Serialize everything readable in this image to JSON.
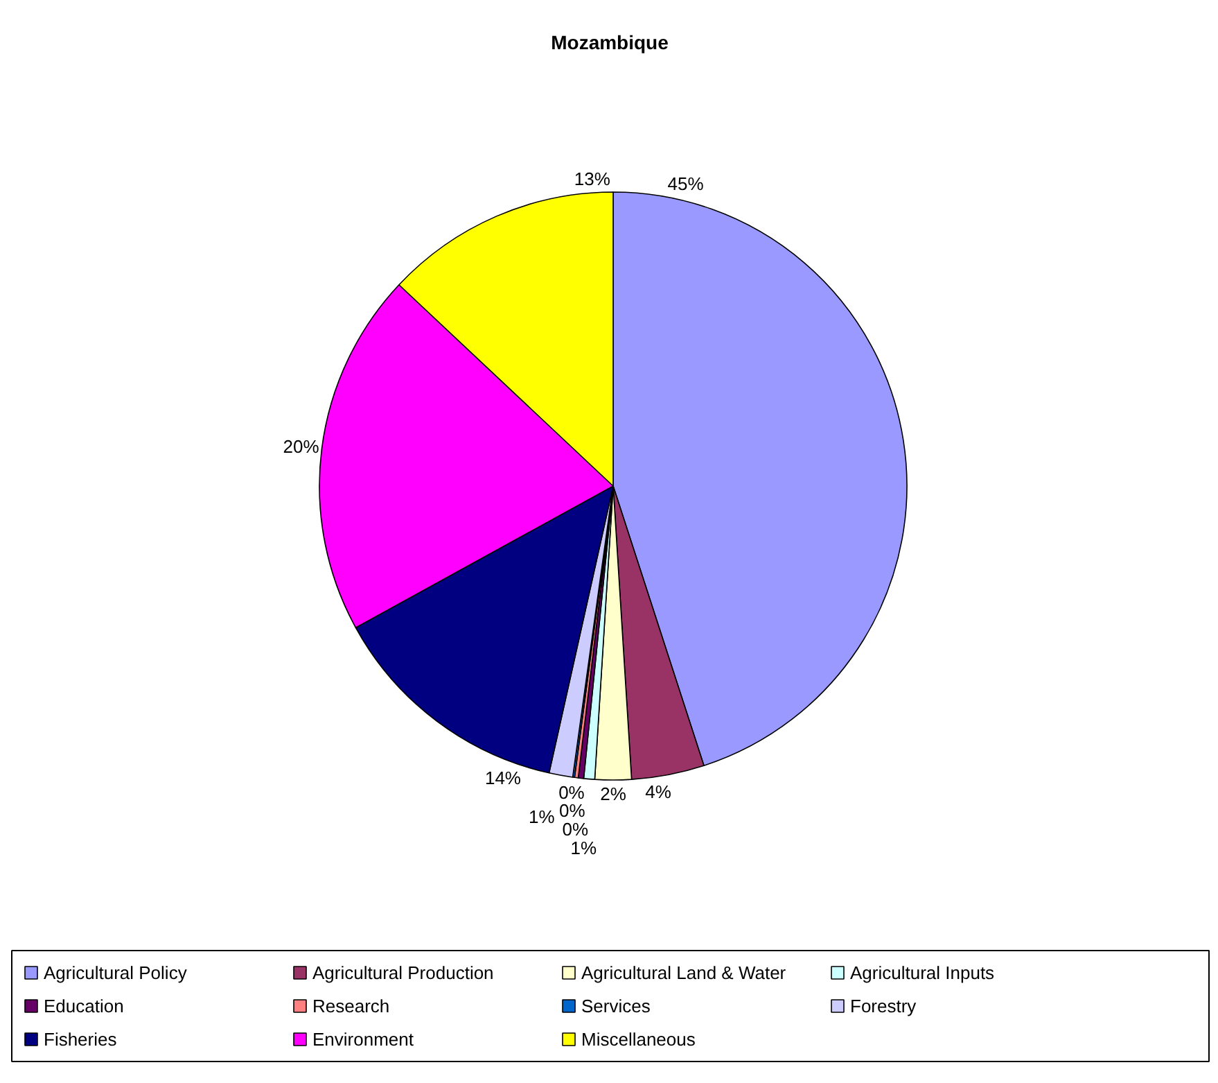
{
  "chart_data": {
    "type": "pie",
    "title": "Mozambique",
    "categories": [
      "Agricultural Policy",
      "Agricultural Production",
      "Agricultural Land & Water",
      "Agricultural Inputs",
      "Education",
      "Research",
      "Services",
      "Forestry",
      "Fisheries",
      "Environment",
      "Miscellaneous"
    ],
    "values": [
      45,
      4,
      2,
      0.6,
      0.3,
      0.2,
      0.1,
      1.3,
      13.5,
      20,
      13
    ],
    "value_labels": [
      "45%",
      "4%",
      "2%",
      "1%",
      "0%",
      "0%",
      "0%",
      "1%",
      "14%",
      "20%",
      "13%"
    ],
    "colors": [
      "#9999ff",
      "#993366",
      "#ffffcc",
      "#ccffff",
      "#660066",
      "#ff8080",
      "#0066cc",
      "#ccccff",
      "#000080",
      "#ff00ff",
      "#ffff00"
    ],
    "legend": "bottom"
  }
}
